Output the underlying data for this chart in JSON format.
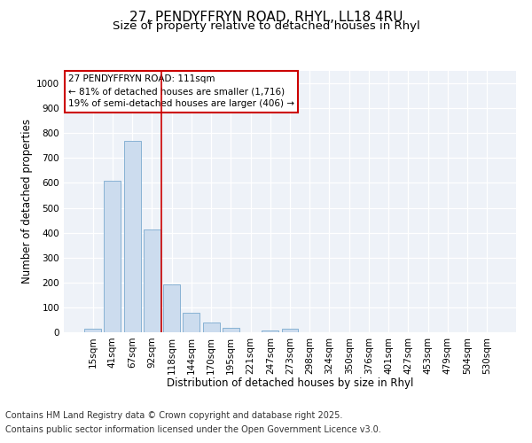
{
  "title_line1": "27, PENDYFFRYN ROAD, RHYL, LL18 4RU",
  "title_line2": "Size of property relative to detached houses in Rhyl",
  "xlabel": "Distribution of detached houses by size in Rhyl",
  "ylabel": "Number of detached properties",
  "categories": [
    "15sqm",
    "41sqm",
    "67sqm",
    "92sqm",
    "118sqm",
    "144sqm",
    "170sqm",
    "195sqm",
    "221sqm",
    "247sqm",
    "273sqm",
    "298sqm",
    "324sqm",
    "350sqm",
    "376sqm",
    "401sqm",
    "427sqm",
    "453sqm",
    "479sqm",
    "504sqm",
    "530sqm"
  ],
  "values": [
    15,
    607,
    770,
    413,
    193,
    78,
    38,
    18,
    0,
    8,
    13,
    0,
    0,
    0,
    0,
    0,
    0,
    0,
    0,
    0,
    0
  ],
  "bar_color": "#ccdcee",
  "bar_edge_color": "#7aaacf",
  "vline_index": 3.5,
  "vline_color": "#cc0000",
  "annotation_text": "27 PENDYFFRYN ROAD: 111sqm\n← 81% of detached houses are smaller (1,716)\n19% of semi-detached houses are larger (406) →",
  "annotation_box_facecolor": "#ffffff",
  "annotation_border_color": "#cc0000",
  "ylim_max": 1050,
  "yticks": [
    0,
    100,
    200,
    300,
    400,
    500,
    600,
    700,
    800,
    900,
    1000
  ],
  "fig_bg_color": "#ffffff",
  "plot_bg_color": "#eef2f8",
  "footer_line1": "Contains HM Land Registry data © Crown copyright and database right 2025.",
  "footer_line2": "Contains public sector information licensed under the Open Government Licence v3.0.",
  "title_fontsize": 11,
  "subtitle_fontsize": 9.5,
  "axis_label_fontsize": 8.5,
  "tick_fontsize": 7.5,
  "annotation_fontsize": 7.5,
  "footer_fontsize": 7
}
